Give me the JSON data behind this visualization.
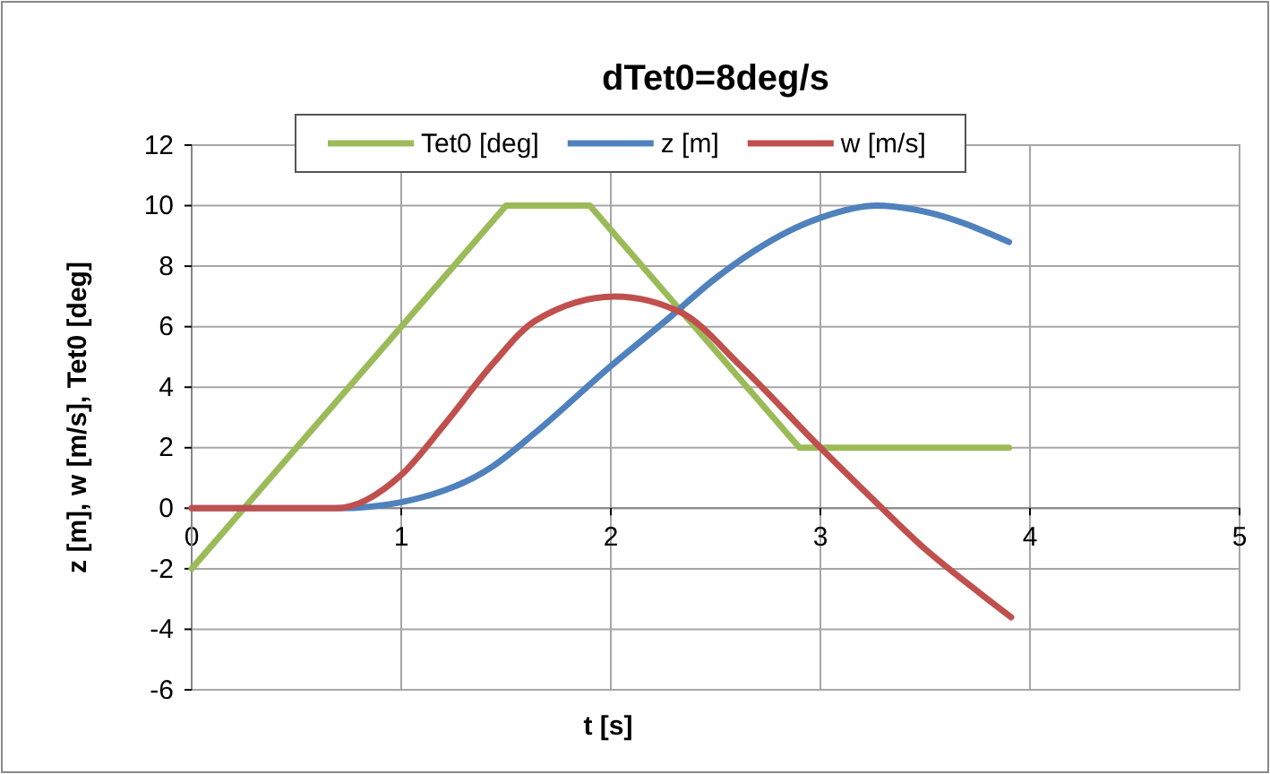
{
  "chart_data": {
    "type": "line",
    "title": "dTet0=8deg/s",
    "xlabel": "t [s]",
    "ylabel": "z [m], w [m/s], Tet0 [deg]",
    "xlim": [
      0,
      5
    ],
    "xticks": [
      0,
      1,
      2,
      3,
      4,
      5
    ],
    "ylim": [
      -6,
      12
    ],
    "yticks": [
      -6,
      -4,
      -2,
      0,
      2,
      4,
      6,
      8,
      10,
      12
    ],
    "grid": true,
    "legend": "top",
    "marker": "none",
    "line_style": "solid",
    "series": [
      {
        "name": "Tet0 [deg]",
        "color": "#9bbb59",
        "x": [
          0,
          1.5,
          1.9,
          2.9,
          3.9
        ],
        "values": [
          -2,
          10,
          10,
          2,
          2
        ]
      },
      {
        "name": "z [m]",
        "color": "#4f81bd",
        "x": [
          0,
          0.7,
          1,
          1.44,
          1.64,
          2,
          2.28,
          2.5,
          3,
          3.27,
          3.5,
          3.9
        ],
        "values": [
          0,
          0,
          0.2,
          1.4,
          2.5,
          4.7,
          6.3,
          7.6,
          9.6,
          10,
          9.8,
          8.8
        ]
      },
      {
        "name": "w [m/s]",
        "color": "#c0504d",
        "x": [
          0,
          0.69,
          1,
          1.21,
          1.44,
          1.64,
          2.02,
          2.34,
          2.62,
          3,
          3.25,
          3.5,
          3.76,
          3.91
        ],
        "values": [
          0,
          0,
          1.1,
          2.8,
          4.8,
          6.2,
          7,
          6.45,
          4.7,
          2,
          0.3,
          -1.35,
          -2.8,
          -3.6
        ]
      }
    ]
  }
}
